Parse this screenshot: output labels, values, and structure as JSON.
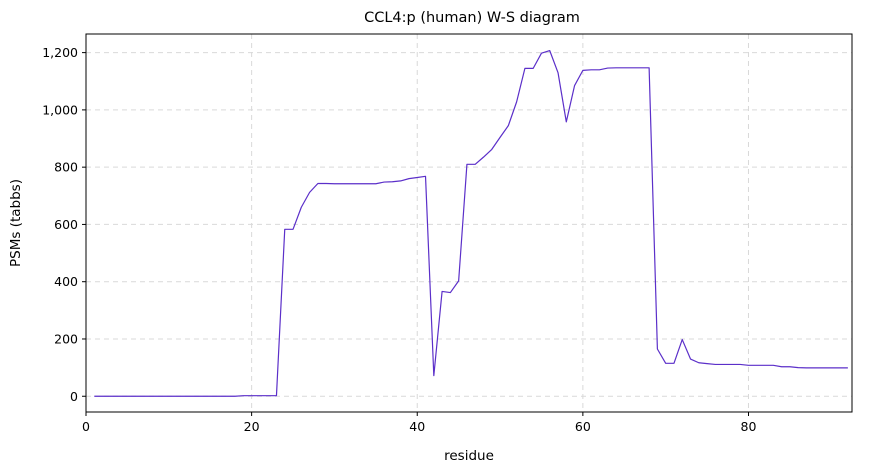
{
  "chart_data": {
    "type": "line",
    "title": "CCL4:p (human) W-S diagram",
    "xlabel": "residue",
    "ylabel": "PSMs (tabbs)",
    "xlim": [
      0,
      92.5
    ],
    "ylim": [
      -55,
      1265
    ],
    "xticks": [
      0,
      20,
      40,
      60,
      80
    ],
    "xtick_labels": [
      "0",
      "20",
      "40",
      "60",
      "80"
    ],
    "yticks": [
      0,
      200,
      400,
      600,
      800,
      1000,
      1200
    ],
    "ytick_labels": [
      "0",
      "200",
      "400",
      "600",
      "800",
      "1,000",
      "1,200"
    ],
    "grid": true,
    "line_color": "#5b2fc9",
    "series": [
      {
        "x": [
          1,
          2,
          3,
          4,
          5,
          6,
          7,
          8,
          9,
          10,
          11,
          12,
          13,
          14,
          15,
          16,
          17,
          18,
          19,
          20,
          21,
          22,
          23,
          24,
          25,
          26,
          27,
          28,
          29,
          30,
          31,
          32,
          33,
          34,
          35,
          36,
          37,
          38,
          39,
          40,
          41,
          42,
          43,
          44,
          45,
          46,
          47,
          48,
          49,
          50,
          51,
          52,
          53,
          54,
          55,
          56,
          57,
          58,
          59,
          60,
          61,
          62,
          63,
          64,
          65,
          66,
          67,
          68,
          69,
          70,
          71,
          72,
          73,
          74,
          75,
          76,
          77,
          78,
          79,
          80,
          81,
          82,
          83,
          84,
          85,
          86,
          87,
          88,
          89,
          90,
          91,
          92
        ],
        "y": [
          0,
          0,
          0,
          0,
          0,
          0,
          0,
          0,
          0,
          0,
          0,
          0,
          0,
          0,
          0,
          0,
          0,
          0,
          2,
          2,
          2,
          2,
          2,
          583,
          583,
          660,
          712,
          743,
          743,
          742,
          742,
          742,
          742,
          742,
          742,
          748,
          749,
          752,
          760,
          764,
          768,
          72,
          366,
          362,
          403,
          810,
          810,
          835,
          862,
          904,
          945,
          1028,
          1145,
          1145,
          1198,
          1207,
          1130,
          958,
          1085,
          1138,
          1140,
          1140,
          1146,
          1147,
          1147,
          1147,
          1147,
          1147,
          165,
          115,
          115,
          198,
          130,
          117,
          114,
          111,
          111,
          111,
          111,
          108,
          108,
          108,
          108,
          103,
          103,
          100,
          99,
          99,
          99,
          99,
          99,
          99
        ]
      }
    ]
  }
}
